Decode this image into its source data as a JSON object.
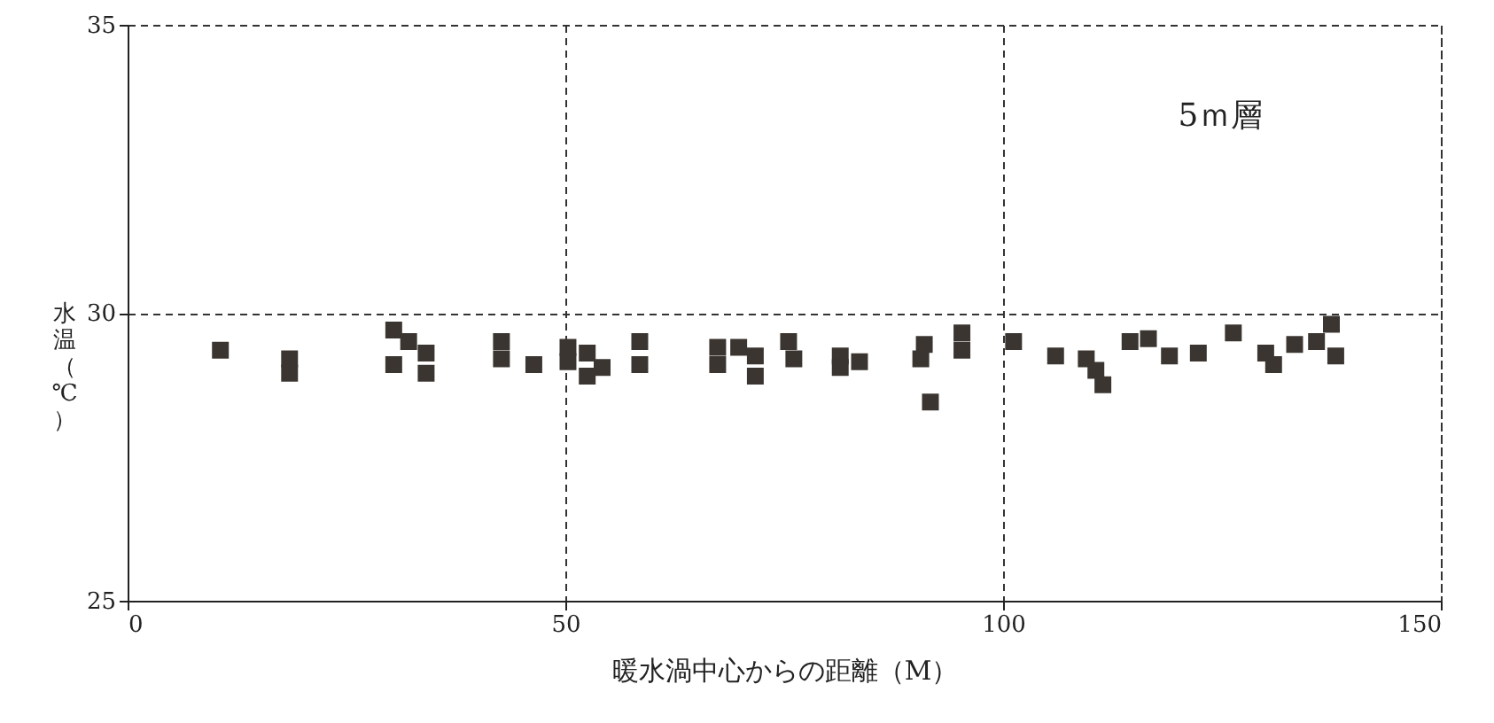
{
  "chart_data": {
    "type": "scatter",
    "xlabel": "暖水渦中心からの距離（M）",
    "ylabel": "水温（℃）",
    "annotations": [
      "5ｍ層"
    ],
    "xlim": [
      0,
      150
    ],
    "xticks": [
      0,
      50,
      100,
      150
    ],
    "ylim": [
      25,
      35
    ],
    "yticks": [
      25,
      30,
      35
    ],
    "grid": true,
    "marker": "square",
    "series": [
      {
        "color": "#3a3530",
        "x": [
          10.6,
          18.5,
          18.5,
          30.4,
          30.4,
          32.1,
          34.1,
          34.1,
          42.7,
          42.7,
          46.4,
          50.3,
          50.3,
          52.5,
          52.5,
          54.2,
          58.5,
          58.5,
          67.4,
          67.4,
          69.8,
          71.7,
          71.7,
          75.5,
          76.1,
          81.4,
          83.6,
          81.4,
          90.6,
          91,
          91.7,
          95.3,
          95.3,
          101.2,
          106,
          109.5,
          110.6,
          111.4,
          114.5,
          116.6,
          119,
          122.3,
          126.3,
          130,
          130.9,
          133.3,
          135.8,
          137.5,
          138
        ],
        "values": [
          29.35,
          29.2,
          28.95,
          29.7,
          29.1,
          29.5,
          29.3,
          28.95,
          29.5,
          29.2,
          29.1,
          29.4,
          29.15,
          29.3,
          28.9,
          29.05,
          29.5,
          29.1,
          29.4,
          29.1,
          29.4,
          29.25,
          28.9,
          29.5,
          29.2,
          29.25,
          29.15,
          29.05,
          29.2,
          29.45,
          28.45,
          29.65,
          29.35,
          29.5,
          29.25,
          29.2,
          29.0,
          28.75,
          29.5,
          29.55,
          29.25,
          29.3,
          29.65,
          29.3,
          29.1,
          29.45,
          29.5,
          29.8,
          29.25
        ]
      }
    ]
  }
}
